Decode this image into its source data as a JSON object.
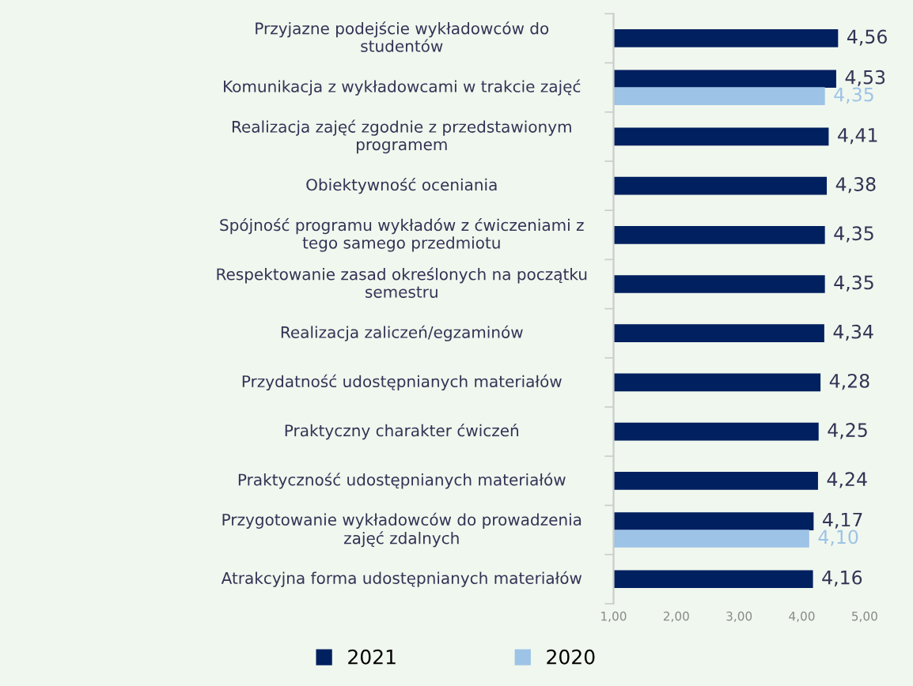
{
  "chart_data": {
    "type": "bar",
    "orientation": "horizontal",
    "categories": [
      "Przyjazne podejście wykładowców do studentów",
      "Komunikacja z wykładowcami w trakcie zajęć",
      "Realizacja zajęć zgodnie z przedstawionym programem",
      "Obiektywność oceniania",
      "Spójność programu wykładów z ćwiczeniami z tego samego przedmiotu",
      "Respektowanie zasad określonych na początku semestru",
      "Realizacja zaliczeń/egzaminów",
      "Przydatność udostępnianych materiałów",
      "Praktyczny charakter ćwiczeń",
      "Praktyczność udostępnianych materiałów",
      "Przygotowanie wykładowców do prowadzenia zajęć zdalnych",
      "Atrakcyjna forma udostępnianych materiałów"
    ],
    "series": [
      {
        "name": "2021",
        "color": "#002060",
        "values": [
          4.56,
          4.53,
          4.41,
          4.38,
          4.35,
          4.35,
          4.34,
          4.28,
          4.25,
          4.24,
          4.17,
          4.16
        ],
        "value_labels": [
          "4,56",
          "4,53",
          "4,41",
          "4,38",
          "4,35",
          "4,35",
          "4,34",
          "4,28",
          "4,25",
          "4,24",
          "4,17",
          "4,16"
        ]
      },
      {
        "name": "2020",
        "color": "#9dc3e6",
        "values": [
          null,
          4.35,
          null,
          null,
          null,
          null,
          null,
          null,
          null,
          null,
          4.1,
          null
        ],
        "value_labels": [
          null,
          "4,35",
          null,
          null,
          null,
          null,
          null,
          null,
          null,
          null,
          "4,10",
          null
        ]
      }
    ],
    "xlim": [
      1,
      5
    ],
    "xticks": [
      {
        "value": 1,
        "label": "1,00"
      },
      {
        "value": 2,
        "label": "2,00"
      },
      {
        "value": 3,
        "label": "3,00"
      },
      {
        "value": 4,
        "label": "4,00"
      },
      {
        "value": 5,
        "label": "5,00"
      }
    ],
    "grid": false,
    "legend": "bottom"
  }
}
